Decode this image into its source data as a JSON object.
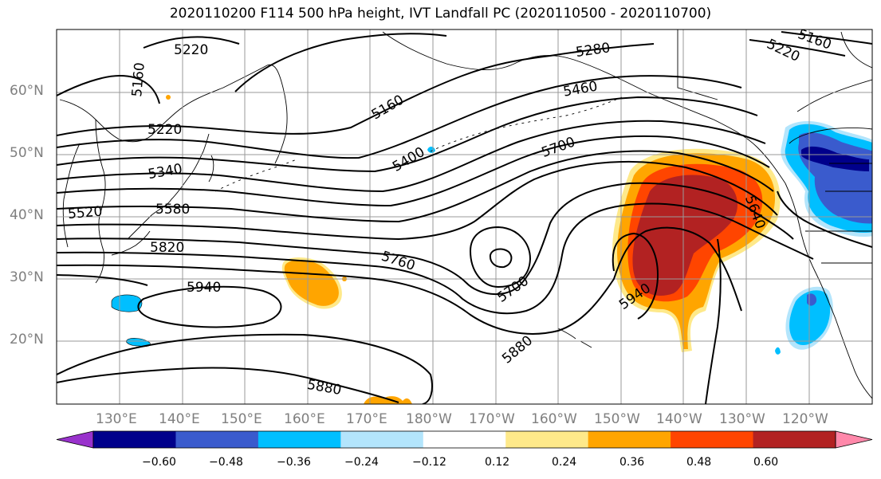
{
  "title": "2020110200 F114 500 hPa height, IVT Landfall PC (2020110500 - 2020110700)",
  "map": {
    "lat_labels": [
      "60°N",
      "50°N",
      "40°N",
      "30°N",
      "20°N"
    ],
    "lon_labels": [
      "130°E",
      "140°E",
      "150°E",
      "160°E",
      "170°E",
      "180°W",
      "170°W",
      "160°W",
      "150°W",
      "140°W",
      "130°W",
      "120°W"
    ],
    "grid": true,
    "contour_labels": [
      "5220",
      "5160",
      "5220",
      "5340",
      "5520",
      "5580",
      "5820",
      "5940",
      "5160",
      "5400",
      "5280",
      "5460",
      "5700",
      "5760",
      "5700",
      "5880",
      "5880",
      "5940",
      "5640",
      "5220",
      "5160"
    ],
    "shading_colors": {
      "purple": "#9932cc",
      "navy": "#00008b",
      "blue": "#3a5bcd",
      "deepskyblue": "#00bfff",
      "lightblue": "#b3e5fc",
      "white": "#ffffff",
      "yellow": "#fee98a",
      "orange": "#ffa500",
      "orangered": "#ff4500",
      "firebrick": "#b22222",
      "pink": "#ff88aa"
    }
  },
  "colorbar": {
    "colors": [
      "#9932cc",
      "#00008b",
      "#3a5bcd",
      "#00bfff",
      "#b3e5fc",
      "#ffffff",
      "#fee98a",
      "#ffa500",
      "#ff4500",
      "#b22222",
      "#ff88aa"
    ],
    "tick_labels": [
      "−0.60",
      "−0.48",
      "−0.36",
      "−0.24",
      "−0.12",
      "0.12",
      "0.24",
      "0.36",
      "0.48",
      "0.60"
    ],
    "extend": "both"
  }
}
